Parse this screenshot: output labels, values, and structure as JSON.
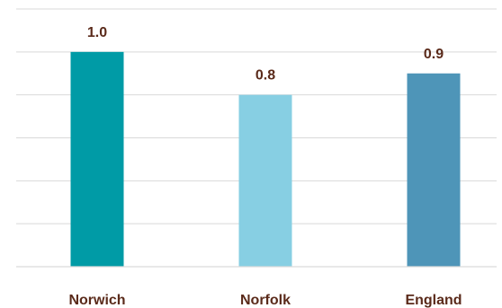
{
  "chart_data": {
    "type": "bar",
    "categories": [
      "Norwich",
      "Norfolk",
      "England"
    ],
    "values": [
      1.0,
      0.8,
      0.9
    ],
    "data_labels": [
      "1.0",
      "0.8",
      "0.9"
    ],
    "colors": [
      "#009ba6",
      "#87cfe3",
      "#4e95b8"
    ],
    "ylim": [
      0,
      1.2
    ],
    "y_grid_step": 0.2,
    "grid": true,
    "legend": "none",
    "title": "",
    "xlabel": "",
    "ylabel": ""
  }
}
